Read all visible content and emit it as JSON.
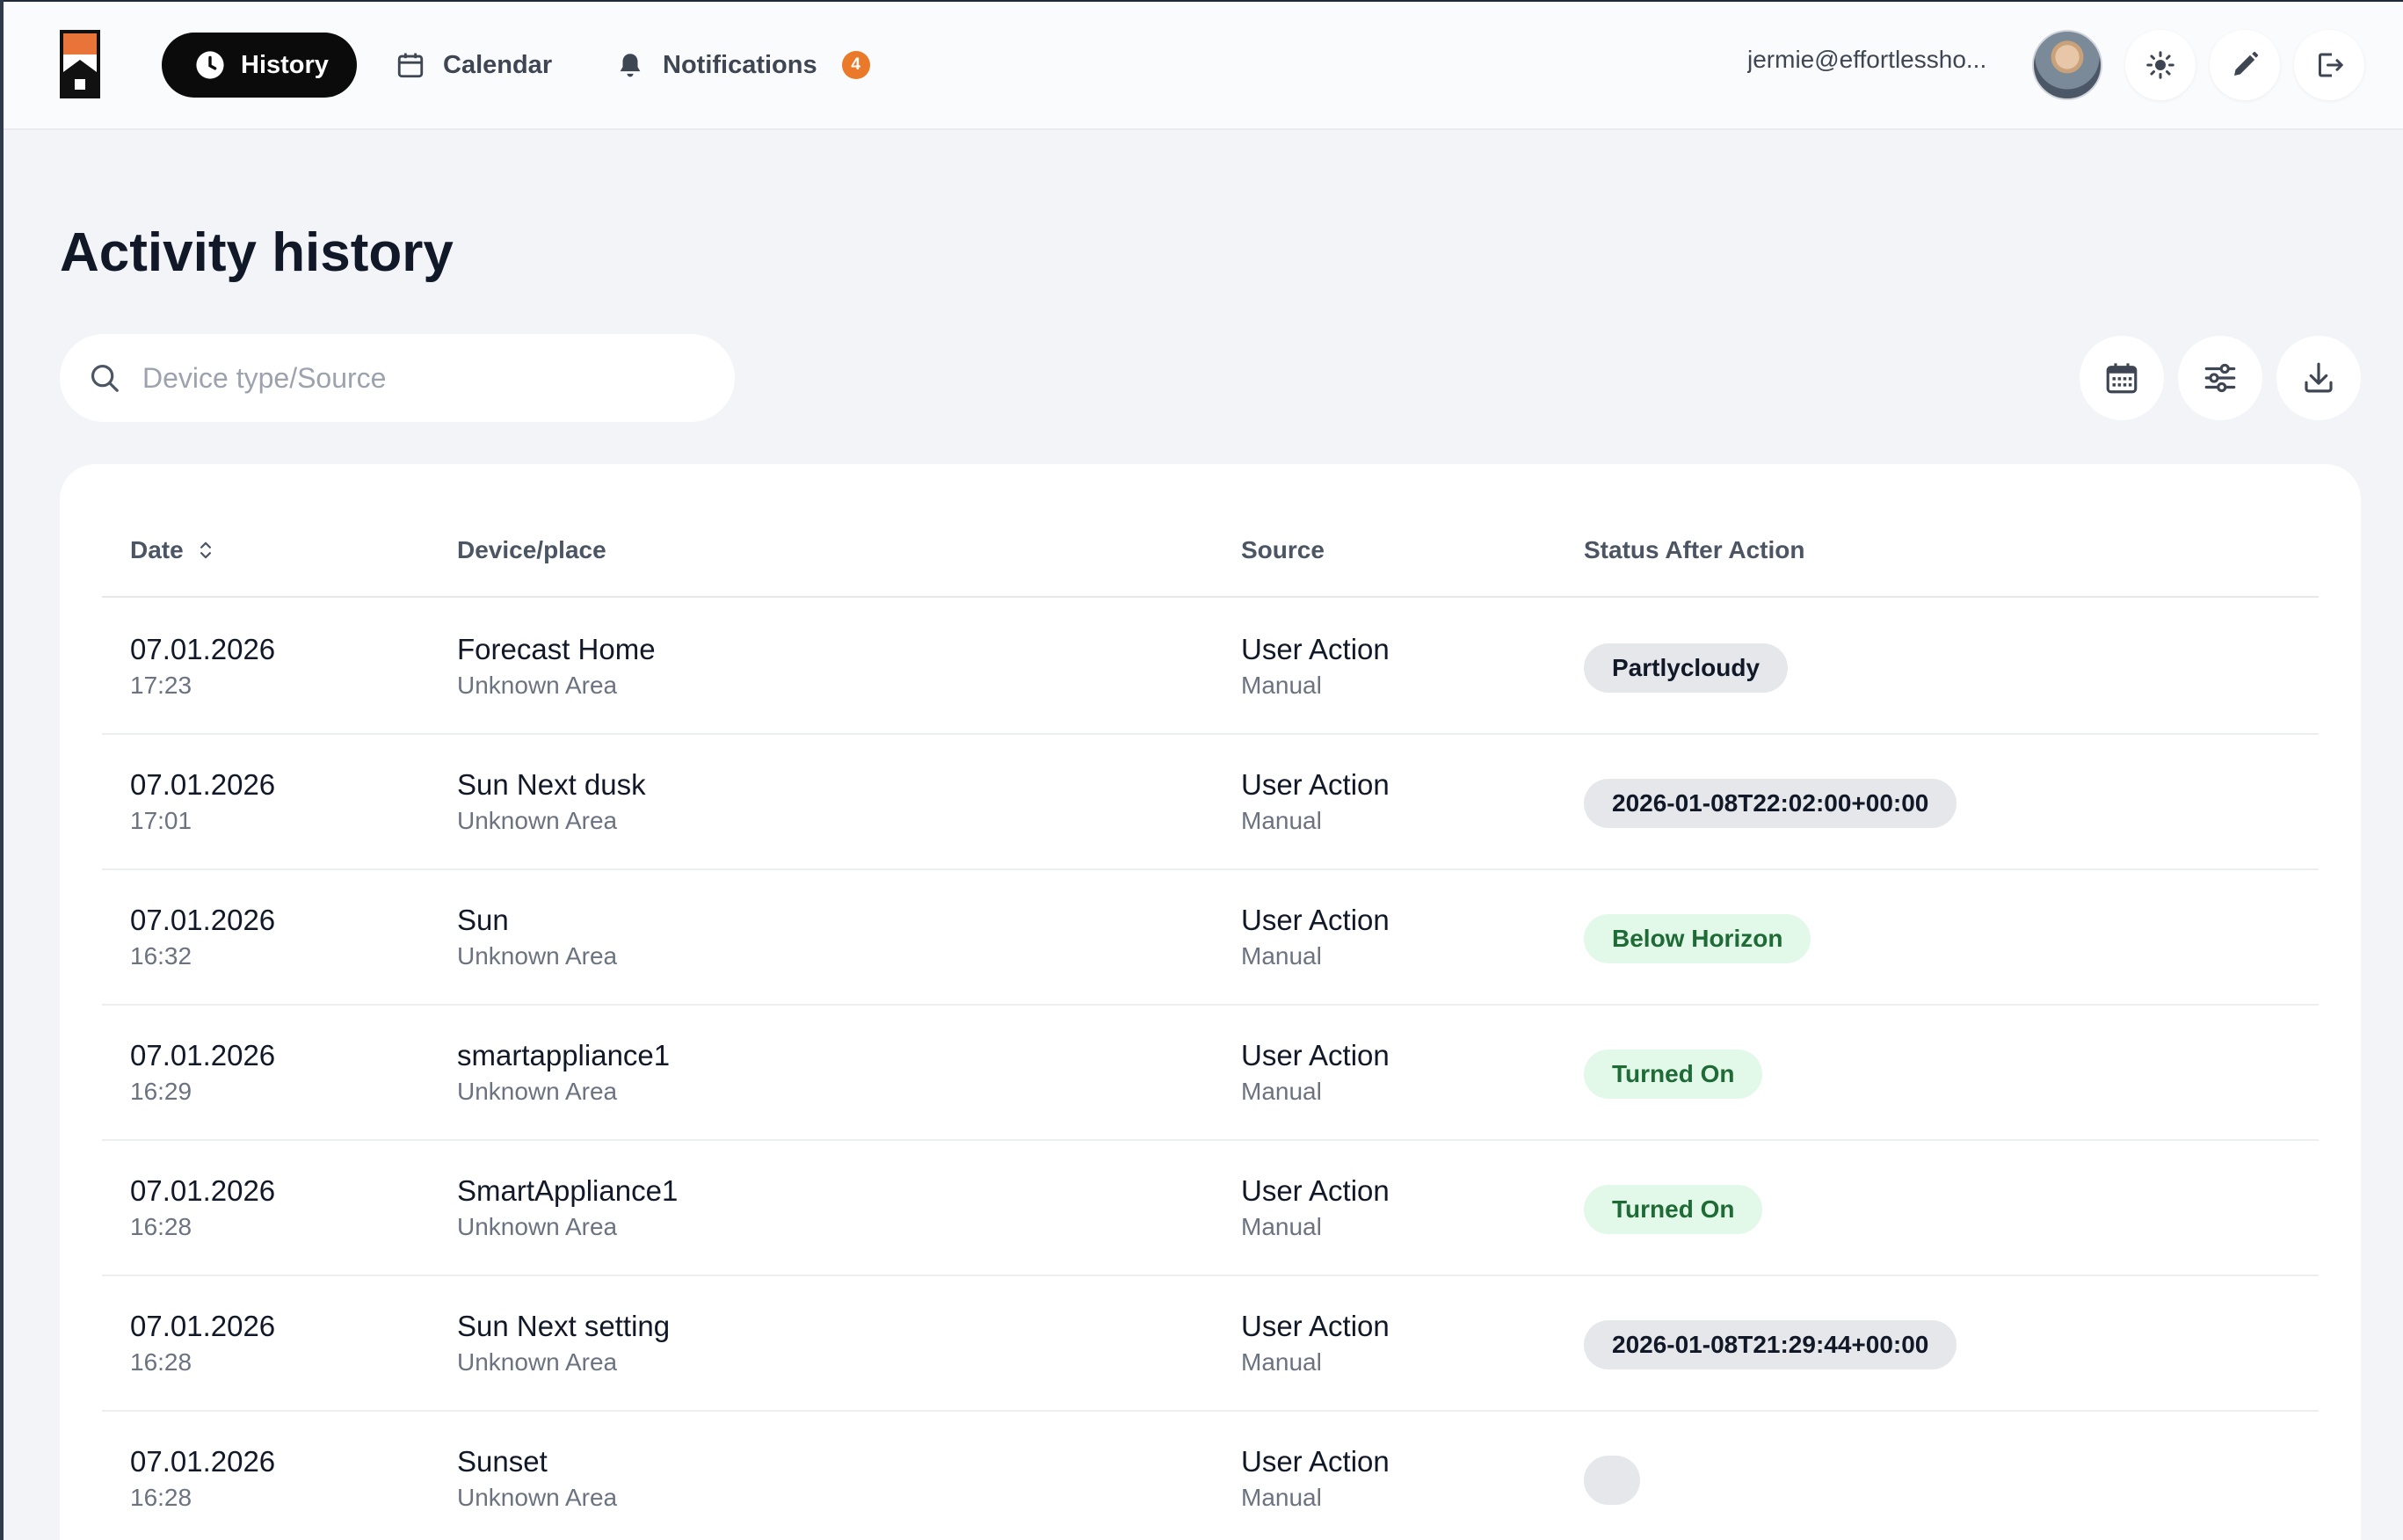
{
  "nav": {
    "history": "History",
    "calendar": "Calendar",
    "notifications": "Notifications",
    "notifications_count": "4"
  },
  "user": {
    "email": "jermie@effortlessho..."
  },
  "page": {
    "title": "Activity history"
  },
  "search": {
    "placeholder": "Device type/Source"
  },
  "table": {
    "headers": {
      "date": "Date",
      "device": "Device/place",
      "source": "Source",
      "status": "Status After Action"
    },
    "rows": [
      {
        "date": "07.01.2026",
        "time": "17:23",
        "device": "Forecast Home",
        "area": "Unknown Area",
        "source": "User Action",
        "source_type": "Manual",
        "status": "Partlycloudy",
        "status_style": "gray"
      },
      {
        "date": "07.01.2026",
        "time": "17:01",
        "device": "Sun Next dusk",
        "area": "Unknown Area",
        "source": "User Action",
        "source_type": "Manual",
        "status": "2026-01-08T22:02:00+00:00",
        "status_style": "gray"
      },
      {
        "date": "07.01.2026",
        "time": "16:32",
        "device": "Sun",
        "area": "Unknown Area",
        "source": "User Action",
        "source_type": "Manual",
        "status": "Below Horizon",
        "status_style": "green"
      },
      {
        "date": "07.01.2026",
        "time": "16:29",
        "device": "smartappliance1",
        "area": "Unknown Area",
        "source": "User Action",
        "source_type": "Manual",
        "status": "Turned On",
        "status_style": "green"
      },
      {
        "date": "07.01.2026",
        "time": "16:28",
        "device": "SmartAppliance1",
        "area": "Unknown Area",
        "source": "User Action",
        "source_type": "Manual",
        "status": "Turned On",
        "status_style": "green"
      },
      {
        "date": "07.01.2026",
        "time": "16:28",
        "device": "Sun Next setting",
        "area": "Unknown Area",
        "source": "User Action",
        "source_type": "Manual",
        "status": "2026-01-08T21:29:44+00:00",
        "status_style": "gray"
      },
      {
        "date": "07.01.2026",
        "time": "16:28",
        "device": "Sunset",
        "area": "Unknown Area",
        "source": "User Action",
        "source_type": "Manual",
        "status": "",
        "status_style": "gray"
      }
    ]
  },
  "colors": {
    "accent_dark": "#0b0b0c",
    "badge_orange": "#ea7a2a",
    "status_green_bg": "#e2f8e8",
    "status_gray_bg": "#e5e7eb"
  },
  "icons": {
    "logo": "house-logo-icon",
    "history": "clock-icon",
    "calendar": "calendar-icon",
    "notifications": "bell-icon",
    "theme": "sun-icon",
    "edit": "pencil-icon",
    "logout": "logout-icon",
    "search": "search-icon",
    "date_filter": "calendar-grid-icon",
    "filters": "sliders-icon",
    "download": "download-icon",
    "sort": "sort-icon"
  }
}
